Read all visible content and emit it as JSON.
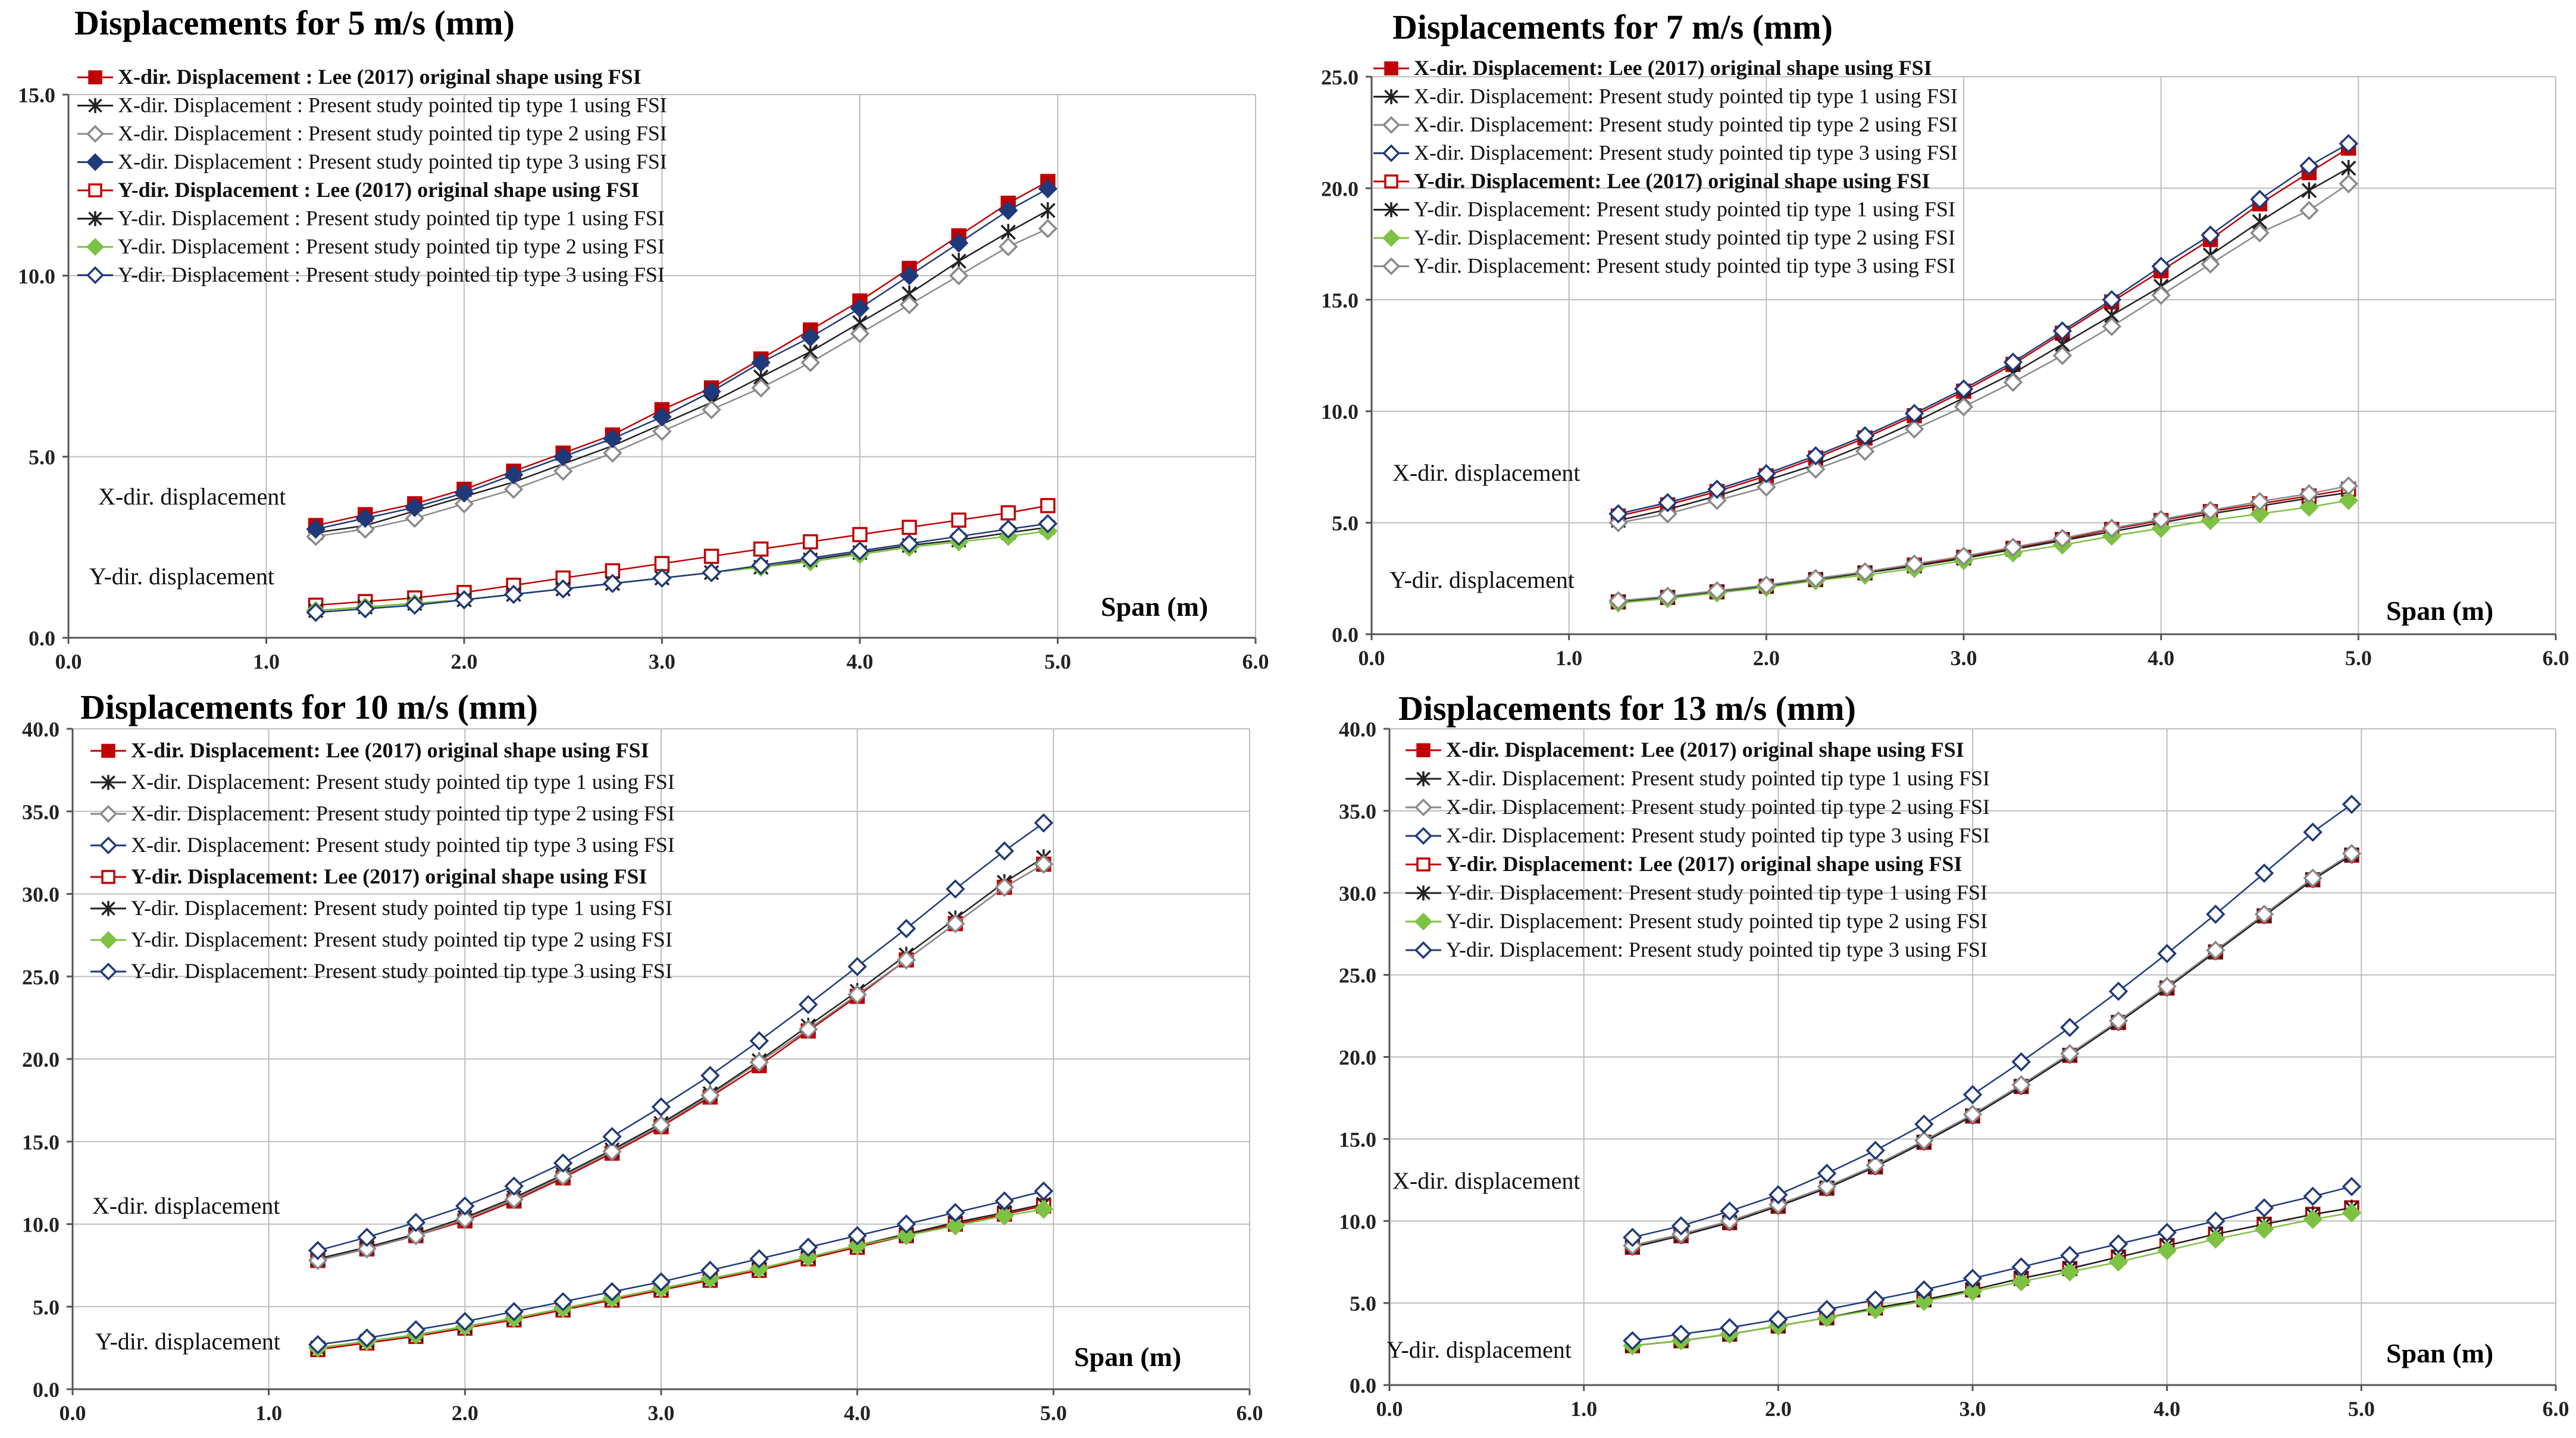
{
  "colors": {
    "red": "#c00000",
    "navy": "#1f3a7a",
    "black": "#222222",
    "gray": "#8a8a8a",
    "green": "#7dc242",
    "grid": "#bdbdbd",
    "axis": "#555555"
  },
  "chart_data": [
    {
      "type": "line",
      "title": "Displacements for 5 m/s (mm)",
      "xlabel": "Span (m)",
      "ylabel": "",
      "xlim": [
        0,
        6
      ],
      "ylim": [
        0,
        15
      ],
      "xticks": [
        "0.0",
        "1.0",
        "2.0",
        "3.0",
        "4.0",
        "5.0",
        "6.0"
      ],
      "yticks": [
        "0.0",
        "5.0",
        "10.0",
        "15.0"
      ],
      "legend_position": "top-left",
      "annotations": [
        "X-dir. displacement",
        "Y-dir. displacement"
      ],
      "x": [
        1.25,
        1.5,
        1.75,
        2.0,
        2.25,
        2.5,
        2.75,
        3.0,
        3.25,
        3.5,
        3.75,
        4.0,
        4.25,
        4.5,
        4.75,
        4.95
      ],
      "series": [
        {
          "name": "X-dir. Displacement : Lee (2017) original shape using FSI",
          "color": "#c00000",
          "marker": "square-filled",
          "bold": true,
          "values": [
            3.1,
            3.4,
            3.7,
            4.1,
            4.6,
            5.1,
            5.6,
            6.3,
            6.9,
            7.7,
            8.5,
            9.3,
            10.2,
            11.1,
            12.0,
            12.6
          ]
        },
        {
          "name": "X-dir. Displacement : Present study pointed tip type 1 using FSI",
          "color": "#222222",
          "marker": "star",
          "bold": false,
          "values": [
            2.9,
            3.1,
            3.5,
            3.9,
            4.3,
            4.8,
            5.3,
            5.9,
            6.5,
            7.2,
            7.9,
            8.7,
            9.5,
            10.4,
            11.2,
            11.8
          ]
        },
        {
          "name": "X-dir. Displacement : Present study pointed tip type 2 using FSI",
          "color": "#8a8a8a",
          "marker": "diamond-open",
          "bold": false,
          "values": [
            2.8,
            3.0,
            3.3,
            3.7,
            4.1,
            4.6,
            5.1,
            5.7,
            6.3,
            6.9,
            7.6,
            8.4,
            9.2,
            10.0,
            10.8,
            11.3
          ]
        },
        {
          "name": "X-dir. Displacement : Present study pointed tip type 3 using FSI",
          "color": "#1f3a7a",
          "marker": "diamond-filled",
          "bold": false,
          "values": [
            3.0,
            3.3,
            3.6,
            4.0,
            4.5,
            5.0,
            5.5,
            6.1,
            6.8,
            7.6,
            8.3,
            9.1,
            10.0,
            10.9,
            11.8,
            12.4
          ]
        },
        {
          "name": "Y-dir. Displacement : Lee (2017) original shape using FSI",
          "color": "#c00000",
          "marker": "square-open",
          "bold": true,
          "values": [
            0.9,
            1.0,
            1.1,
            1.25,
            1.45,
            1.65,
            1.85,
            2.05,
            2.25,
            2.45,
            2.65,
            2.85,
            3.05,
            3.25,
            3.45,
            3.65
          ]
        },
        {
          "name": "Y-dir. Displacement : Present study pointed tip type 1 using FSI",
          "color": "#222222",
          "marker": "star",
          "bold": false,
          "values": [
            0.75,
            0.85,
            0.95,
            1.05,
            1.2,
            1.35,
            1.5,
            1.65,
            1.8,
            1.95,
            2.15,
            2.35,
            2.55,
            2.7,
            2.9,
            3.05
          ]
        },
        {
          "name": "Y-dir. Displacement : Present study pointed tip type 2 using FSI",
          "color": "#7dc242",
          "marker": "diamond-filled",
          "bold": false,
          "values": [
            0.75,
            0.85,
            0.95,
            1.05,
            1.2,
            1.35,
            1.5,
            1.65,
            1.8,
            1.95,
            2.1,
            2.3,
            2.5,
            2.65,
            2.8,
            2.95
          ]
        },
        {
          "name": "Y-dir. Displacement : Present study pointed tip type 3 using FSI",
          "color": "#1f3a7a",
          "marker": "diamond-open",
          "bold": false,
          "values": [
            0.7,
            0.8,
            0.9,
            1.05,
            1.2,
            1.35,
            1.5,
            1.65,
            1.8,
            2.0,
            2.2,
            2.4,
            2.6,
            2.8,
            3.0,
            3.15
          ]
        }
      ]
    },
    {
      "type": "line",
      "title": "Displacements for 7 m/s (mm)",
      "xlabel": "Span (m)",
      "ylabel": "",
      "xlim": [
        0,
        6
      ],
      "ylim": [
        0,
        25
      ],
      "xticks": [
        "0.0",
        "1.0",
        "2.0",
        "3.0",
        "4.0",
        "5.0",
        "6.0"
      ],
      "yticks": [
        "0.0",
        "5.0",
        "10.0",
        "15.0",
        "20.0",
        "25.0"
      ],
      "legend_position": "top-left",
      "annotations": [
        "X-dir. displacement",
        "Y-dir. displacement"
      ],
      "x": [
        1.25,
        1.5,
        1.75,
        2.0,
        2.25,
        2.5,
        2.75,
        3.0,
        3.25,
        3.5,
        3.75,
        4.0,
        4.25,
        4.5,
        4.75,
        4.95
      ],
      "series": [
        {
          "name": "X-dir. Displacement: Lee (2017) original shape using FSI",
          "color": "#c00000",
          "marker": "square-filled",
          "bold": true,
          "values": [
            5.3,
            5.8,
            6.4,
            7.1,
            7.9,
            8.8,
            9.8,
            10.9,
            12.1,
            13.5,
            14.9,
            16.3,
            17.7,
            19.3,
            20.7,
            21.8
          ]
        },
        {
          "name": "X-dir. Displacement: Present study pointed tip type 1 using FSI",
          "color": "#222222",
          "marker": "star",
          "bold": false,
          "values": [
            5.1,
            5.6,
            6.2,
            6.9,
            7.6,
            8.5,
            9.5,
            10.6,
            11.7,
            13.0,
            14.3,
            15.6,
            17.0,
            18.5,
            19.9,
            20.9
          ]
        },
        {
          "name": "X-dir. Displacement: Present study pointed tip type 2 using FSI",
          "color": "#8a8a8a",
          "marker": "diamond-open",
          "bold": false,
          "values": [
            5.0,
            5.4,
            6.0,
            6.6,
            7.4,
            8.2,
            9.2,
            10.2,
            11.3,
            12.5,
            13.8,
            15.2,
            16.6,
            18.0,
            19.0,
            20.2
          ]
        },
        {
          "name": "X-dir. Displacement: Present study pointed tip type 3 using FSI",
          "color": "#1f3a7a",
          "marker": "diamond-open",
          "bold": false,
          "values": [
            5.4,
            5.9,
            6.5,
            7.2,
            8.0,
            8.9,
            9.9,
            11.0,
            12.2,
            13.6,
            15.0,
            16.5,
            17.9,
            19.5,
            21.0,
            22.0
          ]
        },
        {
          "name": "Y-dir. Displacement: Lee (2017) original shape using FSI",
          "color": "#c00000",
          "marker": "square-open",
          "bold": true,
          "values": [
            1.45,
            1.65,
            1.9,
            2.15,
            2.45,
            2.75,
            3.1,
            3.45,
            3.85,
            4.25,
            4.7,
            5.1,
            5.5,
            5.85,
            6.2,
            6.5
          ]
        },
        {
          "name": "Y-dir. Displacement: Present study pointed tip type 1 using FSI",
          "color": "#222222",
          "marker": "star",
          "bold": false,
          "values": [
            1.45,
            1.65,
            1.9,
            2.15,
            2.45,
            2.75,
            3.05,
            3.4,
            3.8,
            4.2,
            4.6,
            5.0,
            5.4,
            5.75,
            6.1,
            6.35
          ]
        },
        {
          "name": "Y-dir. Displacement: Present study pointed tip type 2 using FSI",
          "color": "#7dc242",
          "marker": "diamond-filled",
          "bold": false,
          "values": [
            1.4,
            1.6,
            1.85,
            2.1,
            2.4,
            2.65,
            2.95,
            3.3,
            3.65,
            4.0,
            4.4,
            4.75,
            5.1,
            5.4,
            5.7,
            6.0
          ]
        },
        {
          "name": "Y-dir. Displacement: Present study pointed tip type 3 using FSI",
          "color": "#8a8a8a",
          "marker": "diamond-open",
          "bold": false,
          "values": [
            1.5,
            1.7,
            1.95,
            2.2,
            2.5,
            2.8,
            3.15,
            3.5,
            3.9,
            4.3,
            4.75,
            5.15,
            5.55,
            5.95,
            6.3,
            6.65
          ]
        }
      ]
    },
    {
      "type": "line",
      "title": "Displacements for 10 m/s (mm)",
      "xlabel": "Span (m)",
      "ylabel": "",
      "xlim": [
        0,
        6
      ],
      "ylim": [
        0,
        40
      ],
      "xticks": [
        "0.0",
        "1.0",
        "2.0",
        "3.0",
        "4.0",
        "5.0",
        "6.0"
      ],
      "yticks": [
        "0.0",
        "5.0",
        "10.0",
        "15.0",
        "20.0",
        "25.0",
        "30.0",
        "35.0",
        "40.0"
      ],
      "legend_position": "top-left",
      "annotations": [
        "X-dir. displacement",
        "Y-dir. displacement"
      ],
      "x": [
        1.25,
        1.5,
        1.75,
        2.0,
        2.25,
        2.5,
        2.75,
        3.0,
        3.25,
        3.5,
        3.75,
        4.0,
        4.25,
        4.5,
        4.75,
        4.95
      ],
      "series": [
        {
          "name": "X-dir. Displacement: Lee (2017) original shape using FSI",
          "color": "#c00000",
          "marker": "square-filled",
          "bold": true,
          "values": [
            7.8,
            8.5,
            9.3,
            10.2,
            11.4,
            12.8,
            14.3,
            15.9,
            17.7,
            19.6,
            21.7,
            23.8,
            26.0,
            28.2,
            30.4,
            31.8
          ]
        },
        {
          "name": "X-dir. Displacement: Present study pointed tip type 1 using FSI",
          "color": "#222222",
          "marker": "star",
          "bold": false,
          "values": [
            7.9,
            8.6,
            9.4,
            10.4,
            11.6,
            13.0,
            14.5,
            16.1,
            17.9,
            19.9,
            22.0,
            24.1,
            26.3,
            28.5,
            30.7,
            32.2
          ]
        },
        {
          "name": "X-dir. Displacement: Present study pointed tip type 2 using FSI",
          "color": "#8a8a8a",
          "marker": "diamond-open",
          "bold": false,
          "values": [
            7.8,
            8.5,
            9.3,
            10.3,
            11.5,
            12.9,
            14.4,
            16.0,
            17.8,
            19.8,
            21.8,
            23.9,
            26.0,
            28.2,
            30.4,
            31.8
          ]
        },
        {
          "name": "X-dir. Displacement: Present study pointed tip type 3 using FSI",
          "color": "#1f3a7a",
          "marker": "diamond-open",
          "bold": false,
          "values": [
            8.4,
            9.2,
            10.1,
            11.1,
            12.3,
            13.7,
            15.3,
            17.1,
            19.0,
            21.1,
            23.3,
            25.6,
            27.9,
            30.3,
            32.6,
            34.3
          ]
        },
        {
          "name": "Y-dir. Displacement: Lee (2017) original shape using FSI",
          "color": "#c00000",
          "marker": "square-open",
          "bold": true,
          "values": [
            2.4,
            2.8,
            3.2,
            3.7,
            4.2,
            4.8,
            5.4,
            6.0,
            6.6,
            7.2,
            7.9,
            8.6,
            9.3,
            10.0,
            10.6,
            11.1
          ]
        },
        {
          "name": "Y-dir. Displacement: Present study pointed tip type 1 using FSI",
          "color": "#222222",
          "marker": "star",
          "bold": false,
          "values": [
            2.5,
            2.9,
            3.3,
            3.8,
            4.3,
            4.9,
            5.5,
            6.1,
            6.7,
            7.3,
            8.0,
            8.7,
            9.4,
            10.1,
            10.7,
            11.2
          ]
        },
        {
          "name": "Y-dir. Displacement: Present study pointed tip type 2 using FSI",
          "color": "#7dc242",
          "marker": "diamond-filled",
          "bold": false,
          "values": [
            2.5,
            2.9,
            3.3,
            3.8,
            4.3,
            4.9,
            5.5,
            6.1,
            6.7,
            7.3,
            8.0,
            8.7,
            9.3,
            9.9,
            10.5,
            10.9
          ]
        },
        {
          "name": "Y-dir. Displacement: Present study pointed tip type 3 using FSI",
          "color": "#1f3a7a",
          "marker": "diamond-open",
          "bold": false,
          "values": [
            2.7,
            3.1,
            3.6,
            4.1,
            4.7,
            5.3,
            5.9,
            6.5,
            7.2,
            7.9,
            8.6,
            9.3,
            10.0,
            10.7,
            11.4,
            12.0
          ]
        }
      ]
    },
    {
      "type": "line",
      "title": "Displacements for 13 m/s (mm)",
      "xlabel": "Span (m)",
      "ylabel": "",
      "xlim": [
        0,
        6
      ],
      "ylim": [
        0,
        40
      ],
      "xticks": [
        "0.0",
        "1.0",
        "2.0",
        "3.0",
        "4.0",
        "5.0",
        "6.0"
      ],
      "yticks": [
        "0.0",
        "5.0",
        "10.0",
        "15.0",
        "20.0",
        "25.0",
        "30.0",
        "35.0",
        "40.0"
      ],
      "legend_position": "top-left",
      "annotations": [
        "X-dir. displacement",
        "Y-dir. displacement"
      ],
      "x": [
        1.25,
        1.5,
        1.75,
        2.0,
        2.25,
        2.5,
        2.75,
        3.0,
        3.25,
        3.5,
        3.75,
        4.0,
        4.25,
        4.5,
        4.75,
        4.95
      ],
      "series": [
        {
          "name": "X-dir. Displacement: Lee (2017) original shape using FSI",
          "color": "#c00000",
          "marker": "square-filled",
          "bold": true,
          "values": [
            8.4,
            9.1,
            9.9,
            10.9,
            12.0,
            13.3,
            14.8,
            16.4,
            18.2,
            20.1,
            22.1,
            24.2,
            26.4,
            28.6,
            30.8,
            32.3
          ]
        },
        {
          "name": "X-dir. Displacement: Present study pointed tip type 1 using FSI",
          "color": "#222222",
          "marker": "star",
          "bold": false,
          "values": [
            8.4,
            9.1,
            9.9,
            10.9,
            12.0,
            13.3,
            14.8,
            16.4,
            18.2,
            20.1,
            22.1,
            24.2,
            26.4,
            28.6,
            30.8,
            32.3
          ]
        },
        {
          "name": "X-dir. Displacement: Present study pointed tip type 2 using FSI",
          "color": "#8a8a8a",
          "marker": "diamond-open",
          "bold": false,
          "values": [
            8.5,
            9.2,
            10.0,
            11.0,
            12.1,
            13.4,
            14.9,
            16.5,
            18.3,
            20.2,
            22.2,
            24.3,
            26.5,
            28.7,
            30.9,
            32.4
          ]
        },
        {
          "name": "X-dir. Displacement: Present study pointed tip type 3 using FSI",
          "color": "#1f3a7a",
          "marker": "diamond-open",
          "bold": false,
          "values": [
            9.0,
            9.7,
            10.6,
            11.6,
            12.9,
            14.3,
            15.9,
            17.7,
            19.7,
            21.8,
            24.0,
            26.3,
            28.7,
            31.2,
            33.7,
            35.4
          ]
        },
        {
          "name": "Y-dir. Displacement: Lee (2017) original shape using FSI",
          "color": "#c00000",
          "marker": "square-open",
          "bold": true,
          "values": [
            2.4,
            2.7,
            3.1,
            3.6,
            4.1,
            4.7,
            5.2,
            5.8,
            6.5,
            7.1,
            7.8,
            8.5,
            9.2,
            9.8,
            10.4,
            10.8
          ]
        },
        {
          "name": "Y-dir. Displacement: Present study pointed tip type 1 using FSI",
          "color": "#222222",
          "marker": "star",
          "bold": false,
          "values": [
            2.4,
            2.7,
            3.1,
            3.6,
            4.1,
            4.7,
            5.2,
            5.8,
            6.5,
            7.1,
            7.8,
            8.5,
            9.2,
            9.8,
            10.4,
            10.8
          ]
        },
        {
          "name": "Y-dir. Displacement: Present study pointed tip type 2 using FSI",
          "color": "#7dc242",
          "marker": "diamond-filled",
          "bold": false,
          "values": [
            2.4,
            2.7,
            3.1,
            3.6,
            4.1,
            4.6,
            5.1,
            5.7,
            6.3,
            6.9,
            7.5,
            8.2,
            8.9,
            9.5,
            10.1,
            10.5
          ]
        },
        {
          "name": "Y-dir. Displacement: Present study pointed tip type 3 using FSI",
          "color": "#1f3a7a",
          "marker": "diamond-open",
          "bold": false,
          "values": [
            2.7,
            3.1,
            3.5,
            4.0,
            4.6,
            5.2,
            5.8,
            6.5,
            7.2,
            7.9,
            8.6,
            9.3,
            10.0,
            10.8,
            11.5,
            12.1
          ]
        }
      ]
    }
  ]
}
